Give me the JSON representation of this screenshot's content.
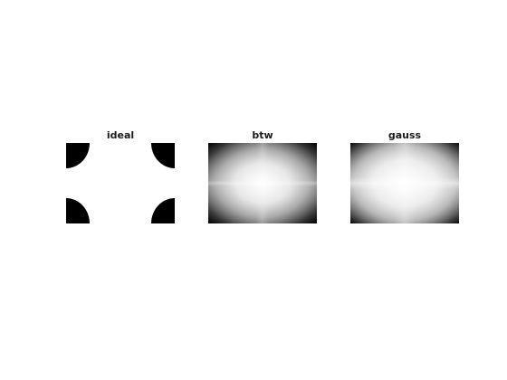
{
  "figure": {
    "panels": [
      {
        "title": "ideal"
      },
      {
        "title": "btw"
      },
      {
        "title": "gauss"
      }
    ],
    "colors": {
      "background": "#ffffff",
      "black": "#000000",
      "white": "#ffffff",
      "title_text": "#1a1a1a"
    }
  }
}
